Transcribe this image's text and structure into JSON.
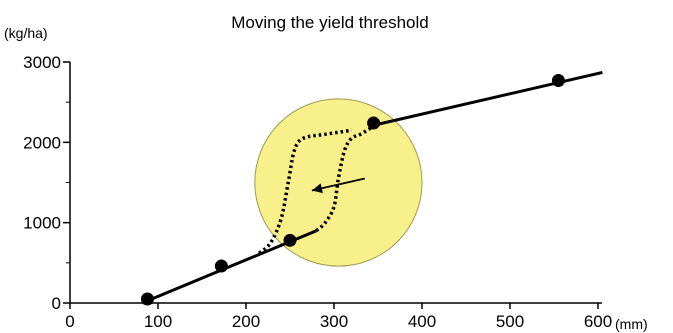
{
  "chart_data": {
    "type": "line",
    "title": "Moving the yield threshold",
    "ylabel": "(kg/ha)",
    "xlabel": "(mm)",
    "xlim": [
      0,
      600
    ],
    "ylim": [
      0,
      3000
    ],
    "x_ticks": [
      0,
      100,
      200,
      300,
      400,
      500,
      600
    ],
    "x_tick_labels": [
      "0",
      "100",
      "200",
      "300",
      "400",
      "500",
      "600"
    ],
    "y_ticks": [
      0,
      1000,
      2000,
      3000
    ],
    "y_tick_labels": [
      "0",
      "1000",
      "2000",
      "3000"
    ],
    "grid": false,
    "legend": "none",
    "series": [
      {
        "style": "solid-line",
        "x": [
          82,
          280
        ],
        "y": [
          0,
          900
        ]
      },
      {
        "style": "solid-line",
        "x": [
          340,
          605
        ],
        "y": [
          2200,
          2870
        ]
      },
      {
        "style": "points",
        "x": [
          88,
          172,
          250,
          345,
          555
        ],
        "y": [
          50,
          460,
          780,
          2240,
          2770
        ]
      },
      {
        "style": "dotted-sigmoid-original",
        "x": [
          280,
          290,
          300,
          305,
          312,
          320,
          330,
          345
        ],
        "y": [
          900,
          1000,
          1200,
          1550,
          1900,
          2050,
          2100,
          2200
        ]
      },
      {
        "style": "dotted-sigmoid-shifted",
        "x": [
          215,
          228,
          240,
          248,
          255,
          265,
          290,
          320
        ],
        "y": [
          620,
          750,
          1050,
          1500,
          1900,
          2050,
          2100,
          2150
        ]
      }
    ],
    "highlight_circle": {
      "cx": 305,
      "cy": 1500,
      "r_x_units": 95,
      "color": "#f8f08a"
    },
    "arrow": {
      "from": [
        335,
        1550
      ],
      "to": [
        275,
        1400
      ],
      "label": ""
    },
    "colors": {
      "line": "#000000",
      "circle_fill": "#f8f08a",
      "circle_stroke": "#a09a55"
    }
  }
}
